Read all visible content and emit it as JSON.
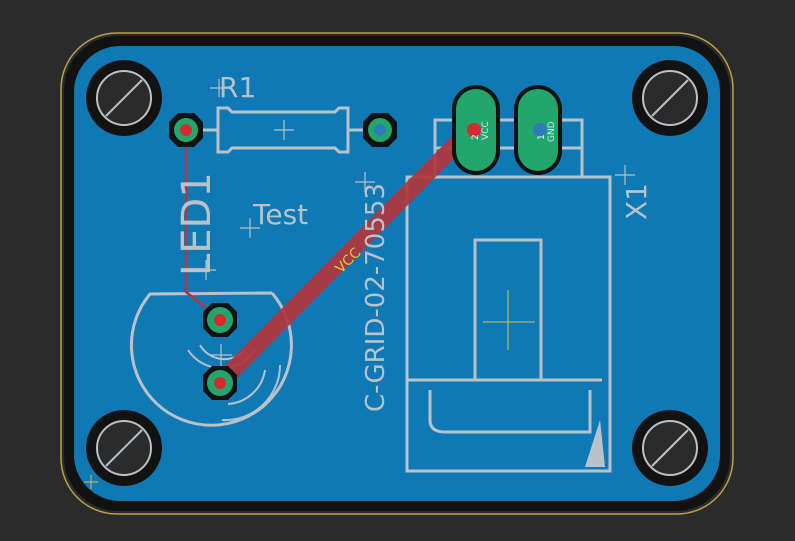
{
  "colors": {
    "background": "#2b2b2b",
    "board_outline": "#b9a24a",
    "board_edge": "#121212",
    "copper_pour": "#0f79b6",
    "silkscreen": "#b9c2c8",
    "trace": "#b2363d",
    "pad_ring": "#23a66b",
    "pad_hole": "#d62a2f",
    "label_accent": "#e8c82c",
    "origin_mark": "#c9c84a"
  },
  "board": {
    "components": {
      "r1": {
        "designator": "R1",
        "type": "resistor"
      },
      "led1": {
        "designator": "LED1",
        "type": "led"
      },
      "x1": {
        "designator": "X1",
        "value": "C-GRID-02-70553",
        "type": "connector"
      },
      "test_label": {
        "text": "Test"
      }
    },
    "nets": {
      "vcc_trace_label": "VCC"
    },
    "pad_labels": {
      "x1_pin1": "1",
      "x1_pin2": "2",
      "x1_pin1_net": "GND",
      "x1_pin2_net": "VCC"
    },
    "mounting_holes": [
      "top-left",
      "top-right",
      "bottom-left",
      "bottom-right"
    ]
  }
}
